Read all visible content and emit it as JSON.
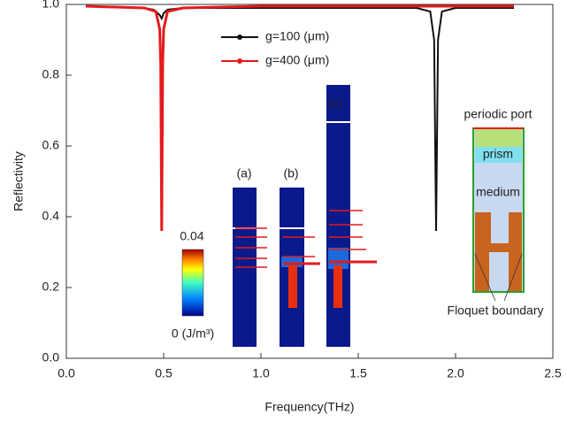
{
  "chart_data": {
    "type": "line",
    "x_label": "Frequency(THz)",
    "y_label": "Reflectivity",
    "xlim": [
      0,
      2.5
    ],
    "ylim": [
      0,
      1.0
    ],
    "xticks": [
      {
        "value": 0,
        "label": "0.0"
      },
      0.5,
      {
        "value": 1,
        "label": "1.0"
      },
      1.5,
      {
        "value": 2,
        "label": "2.0"
      },
      2.5
    ],
    "yticks": [
      {
        "value": 0,
        "label": "0.0"
      },
      0.2,
      0.4,
      0.6,
      0.8,
      {
        "value": 1,
        "label": "1.0"
      }
    ],
    "series": [
      {
        "name": "g=100 (μm)",
        "color": "#111111",
        "x": [
          0.1,
          0.4,
          0.45,
          0.48,
          0.49,
          0.5,
          0.52,
          0.6,
          1.8,
          1.87,
          1.89,
          1.9,
          1.91,
          1.93,
          2.0,
          2.3
        ],
        "values": [
          0.995,
          0.99,
          0.985,
          0.97,
          0.96,
          0.975,
          0.985,
          0.99,
          0.99,
          0.98,
          0.9,
          0.36,
          0.9,
          0.98,
          0.99,
          0.99
        ]
      },
      {
        "name": "g=400 (μm)",
        "color": "#e41a1c",
        "x": [
          0.1,
          0.4,
          0.46,
          0.48,
          0.485,
          0.49,
          0.495,
          0.5,
          0.52,
          0.6,
          1.0,
          2.3
        ],
        "values": [
          0.995,
          0.99,
          0.98,
          0.93,
          0.83,
          0.36,
          0.83,
          0.93,
          0.98,
          0.99,
          0.995,
          0.995
        ]
      }
    ],
    "annotations": [
      "(a)",
      "(b)",
      "(c)",
      "0.04",
      "0 (J/m³)",
      "periodic port",
      "prism",
      "medium",
      "Floquet boundary"
    ]
  }
}
